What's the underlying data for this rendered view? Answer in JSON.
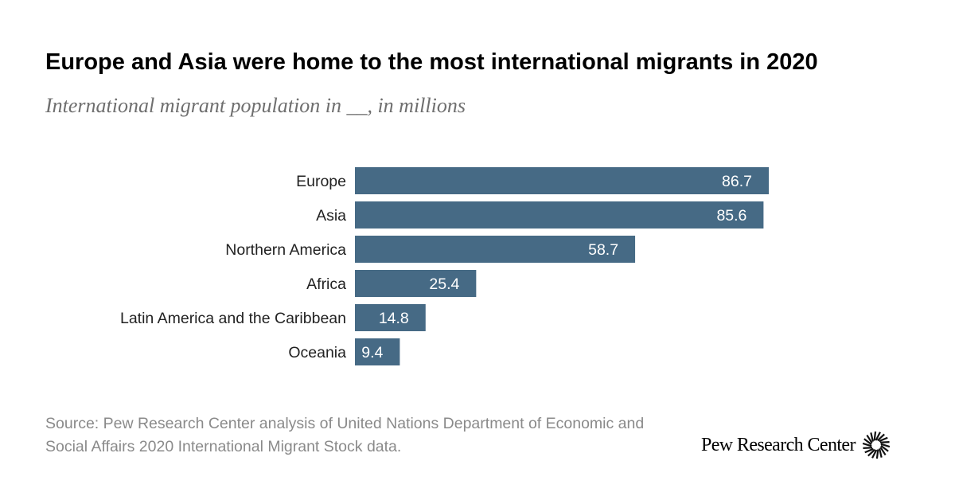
{
  "title": "Europe and Asia were home to the most international migrants in 2020",
  "subtitle": "International migrant population in __, in millions",
  "source": "Source: Pew Research Center analysis of United Nations Department of Economic and Social Affairs 2020 International Migrant Stock data.",
  "brand": {
    "name": "Pew Research Center",
    "logo_icon": "pew-sunburst-icon"
  },
  "colors": {
    "bar": "#466a85",
    "bar_label": "#ffffff",
    "category_label": "#222222"
  },
  "chart_data": {
    "type": "bar",
    "orientation": "horizontal",
    "categories": [
      "Europe",
      "Asia",
      "Northern America",
      "Africa",
      "Latin America and the Caribbean",
      "Oceania"
    ],
    "values": [
      86.7,
      85.6,
      58.7,
      25.4,
      14.8,
      9.4
    ],
    "data_labels": [
      "86.7",
      "85.6",
      "58.7",
      "25.4",
      "14.8",
      "9.4"
    ],
    "title": "Europe and Asia were home to the most international migrants in 2020",
    "xlabel": "",
    "ylabel": "",
    "xlim": [
      0,
      86.7
    ],
    "grid": false,
    "legend": "none"
  }
}
